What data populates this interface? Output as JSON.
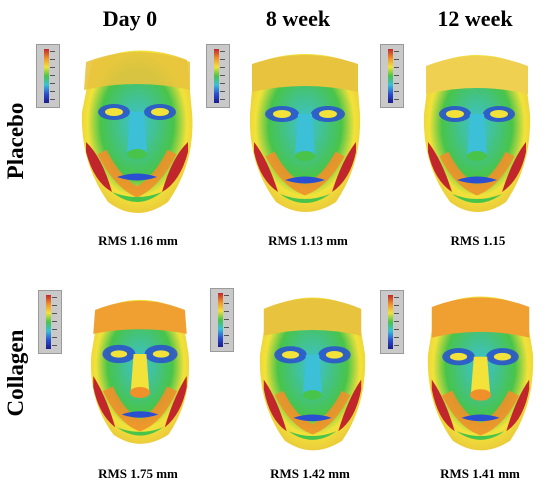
{
  "columns": [
    "Day 0",
    "8 week",
    "12 week"
  ],
  "rows": [
    {
      "label": "Placebo",
      "rms": [
        "RMS 1.16 mm",
        "RMS 1.13 mm",
        "RMS 1.15"
      ]
    },
    {
      "label": "Collagen",
      "rms": [
        "RMS 1.75 mm",
        "RMS 1.42 mm",
        "RMS 1.41 mm"
      ]
    }
  ],
  "colors": {
    "deviation_high": "#c0262b",
    "deviation_mid_high": "#f0902a",
    "deviation_mid": "#f2e23a",
    "deviation_low": "#48c44a",
    "deviation_neutral": "#3cc0d8",
    "deviation_negative": "#2a4fd0"
  }
}
